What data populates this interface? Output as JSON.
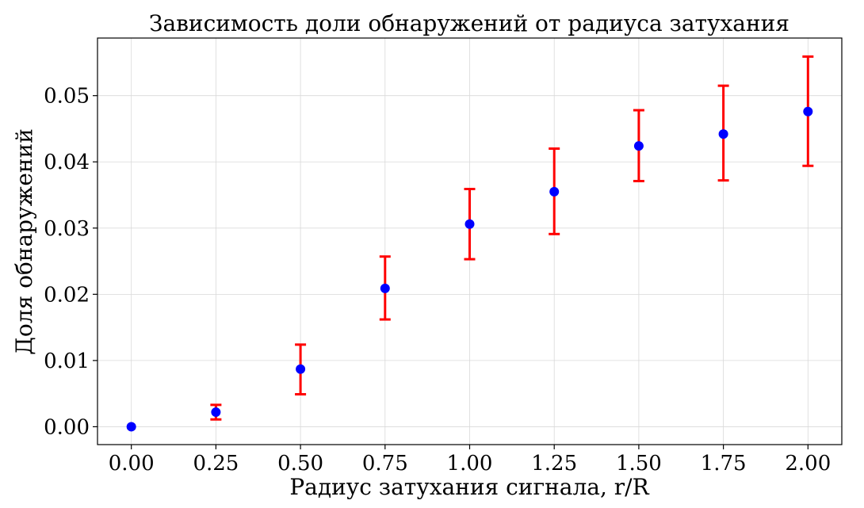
{
  "chart_data": {
    "type": "scatter",
    "title": "Зависимость доли обнаружений от радиуса затухания",
    "xlabel": "Радиус затухания сигнала, r/R",
    "ylabel": "Доля обнаружений",
    "xlim": [
      -0.1,
      2.1
    ],
    "ylim": [
      -0.0027,
      0.0587
    ],
    "grid": true,
    "x_ticks": [
      "0.00",
      "0.25",
      "0.50",
      "0.75",
      "1.00",
      "1.25",
      "1.50",
      "1.75",
      "2.00"
    ],
    "y_ticks": [
      "0.00",
      "0.01",
      "0.02",
      "0.03",
      "0.04",
      "0.05"
    ],
    "series": [
      {
        "x": [
          0.0,
          0.25,
          0.5,
          0.75,
          1.0,
          1.25,
          1.5,
          1.75,
          2.0
        ],
        "y": [
          0.0,
          0.0022,
          0.0087,
          0.0209,
          0.0306,
          0.0355,
          0.0424,
          0.0442,
          0.0476
        ],
        "y_err_low": [
          0.0,
          0.0011,
          0.0049,
          0.0162,
          0.0253,
          0.0291,
          0.0371,
          0.0372,
          0.0394
        ],
        "y_err_high": [
          0.0,
          0.0033,
          0.0124,
          0.0257,
          0.0359,
          0.042,
          0.0478,
          0.0515,
          0.0559
        ]
      }
    ],
    "colors": {
      "marker": "#0000ff",
      "errorbar": "#ff0000",
      "grid": "#d9d9d9"
    }
  }
}
